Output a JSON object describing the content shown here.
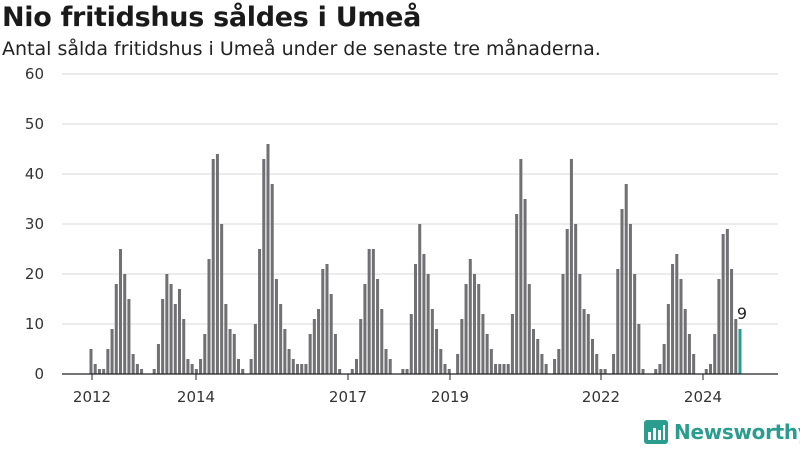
{
  "header": {
    "title": "Nio fritidshus såldes i Umeå",
    "subtitle": "Antal sålda fritidshus i Umeå under de senaste tre månaderna."
  },
  "brand": {
    "logo_text": "Newsworthy",
    "logo_icon": "newsworthy-chart-icon",
    "logo_color": "#2a9d8f"
  },
  "chart_data": {
    "type": "bar",
    "ylim": [
      0,
      60
    ],
    "yticks": [
      0,
      10,
      20,
      30,
      40,
      50,
      60
    ],
    "xticks": [
      "2012",
      "2014",
      "2017",
      "2019",
      "2022",
      "2024"
    ],
    "bar_color": "#717073",
    "highlight_color": "#2a9d8f",
    "highlight_label": "9",
    "grid": true,
    "values": [
      5,
      2,
      1,
      1,
      5,
      9,
      18,
      25,
      20,
      15,
      4,
      2,
      1,
      0,
      0,
      1,
      6,
      15,
      20,
      18,
      14,
      17,
      11,
      3,
      2,
      1,
      3,
      8,
      23,
      43,
      44,
      30,
      14,
      9,
      8,
      3,
      1,
      0,
      3,
      10,
      25,
      43,
      46,
      38,
      19,
      14,
      9,
      5,
      3,
      2,
      2,
      2,
      8,
      11,
      13,
      21,
      22,
      16,
      8,
      1,
      0,
      0,
      1,
      3,
      11,
      18,
      25,
      25,
      19,
      13,
      5,
      3,
      0,
      0,
      1,
      1,
      12,
      22,
      30,
      24,
      20,
      13,
      9,
      5,
      2,
      1,
      0,
      4,
      11,
      18,
      23,
      20,
      18,
      12,
      8,
      5,
      2,
      2,
      2,
      2,
      12,
      32,
      43,
      35,
      18,
      9,
      7,
      4,
      2,
      0,
      3,
      5,
      20,
      29,
      43,
      30,
      20,
      13,
      12,
      7,
      4,
      1,
      1,
      0,
      4,
      21,
      33,
      38,
      30,
      20,
      10,
      1,
      0,
      0,
      1,
      2,
      6,
      14,
      22,
      24,
      19,
      13,
      8,
      4,
      0,
      0,
      1,
      2,
      8,
      19,
      28,
      29,
      21,
      11,
      9
    ]
  }
}
